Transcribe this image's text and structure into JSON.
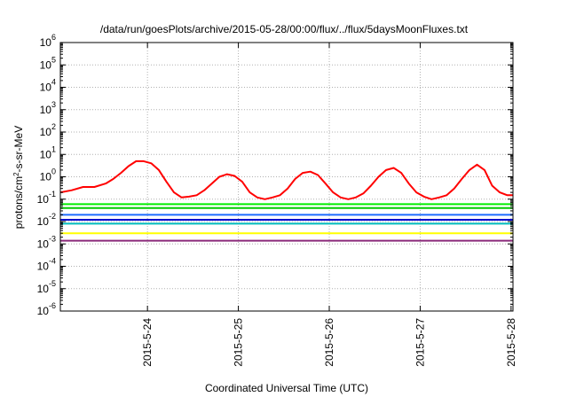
{
  "chart_data": {
    "type": "line",
    "title": "/data/run/goesPlots/archive/2015-05-28/00:00/flux/../flux/5daysMoonFluxes.txt",
    "xlabel": "Coordinated Universal Time (UTC)",
    "ylabel": {
      "pre": "protons/cm",
      "sup": "2",
      "post": "-s-sr-MeV"
    },
    "y_scale": "log",
    "ylim_exp": [
      -6,
      6
    ],
    "y_ticks": [
      {
        "base": "10",
        "exp": "-6"
      },
      {
        "base": "10",
        "exp": "-5"
      },
      {
        "base": "10",
        "exp": "-4"
      },
      {
        "base": "10",
        "exp": "-3"
      },
      {
        "base": "10",
        "exp": "-2"
      },
      {
        "base": "10",
        "exp": "-1"
      },
      {
        "base": "10",
        "exp": "0"
      },
      {
        "base": "10",
        "exp": "1"
      },
      {
        "base": "10",
        "exp": "2"
      },
      {
        "base": "10",
        "exp": "3"
      },
      {
        "base": "10",
        "exp": "4"
      },
      {
        "base": "10",
        "exp": "5"
      },
      {
        "base": "10",
        "exp": "6"
      }
    ],
    "x_start": "2015-05-23 01:00",
    "x_end": "2015-05-28 00:30",
    "x_ticks": [
      "2015-5-24",
      "2015-5-25",
      "2015-5-26",
      "2015-5-27",
      "2015-5-28"
    ],
    "grid": true,
    "series": [
      {
        "color": "#ff0000",
        "t": [
          "05-23 01:00",
          "05-23 04:00",
          "05-23 07:00",
          "05-23 10:00",
          "05-23 13:00",
          "05-23 15:00",
          "05-23 17:00",
          "05-23 19:00",
          "05-23 21:00",
          "05-23 23:00",
          "05-24 01:00",
          "05-24 03:00",
          "05-24 05:00",
          "05-24 07:00",
          "05-24 09:00",
          "05-24 11:00",
          "05-24 13:00",
          "05-24 15:00",
          "05-24 17:00",
          "05-24 19:00",
          "05-24 21:00",
          "05-24 23:00",
          "05-25 01:00",
          "05-25 03:00",
          "05-25 05:00",
          "05-25 07:00",
          "05-25 09:00",
          "05-25 11:00",
          "05-25 13:00",
          "05-25 15:00",
          "05-25 17:00",
          "05-25 19:00",
          "05-25 21:00",
          "05-25 23:00",
          "05-26 01:00",
          "05-26 03:00",
          "05-26 05:00",
          "05-26 07:00",
          "05-26 09:00",
          "05-26 11:00",
          "05-26 13:00",
          "05-26 15:00",
          "05-26 17:00",
          "05-26 19:00",
          "05-26 21:00",
          "05-26 23:00",
          "05-27 01:00",
          "05-27 03:00",
          "05-27 05:00",
          "05-27 07:00",
          "05-27 09:00",
          "05-27 11:00",
          "05-27 13:00",
          "05-27 15:00",
          "05-27 17:00",
          "05-27 19:00",
          "05-27 21:00",
          "05-27 23:00",
          "05-28 00:30"
        ],
        "y": [
          0.2,
          0.25,
          0.35,
          0.35,
          0.5,
          0.8,
          1.5,
          3,
          5,
          5,
          4,
          2,
          0.6,
          0.2,
          0.12,
          0.13,
          0.15,
          0.25,
          0.5,
          1,
          1.3,
          1.1,
          0.6,
          0.2,
          0.12,
          0.1,
          0.12,
          0.15,
          0.3,
          0.8,
          1.5,
          1.7,
          1.2,
          0.5,
          0.2,
          0.12,
          0.1,
          0.12,
          0.18,
          0.4,
          1,
          2,
          2.5,
          1.5,
          0.5,
          0.2,
          0.13,
          0.1,
          0.12,
          0.15,
          0.3,
          0.8,
          2,
          3.5,
          2,
          0.4,
          0.2,
          0.15,
          0.15
        ]
      },
      {
        "color": "#00ee00",
        "t": [
          "05-23 01:00",
          "05-28 00:30"
        ],
        "y": [
          0.06,
          0.06
        ]
      },
      {
        "color": "#00cc00",
        "t": [
          "05-23 01:00",
          "05-28 00:30"
        ],
        "y": [
          0.04,
          0.04
        ]
      },
      {
        "color": "#1e6cff",
        "t": [
          "05-23 01:00",
          "05-28 00:30"
        ],
        "y": [
          0.02,
          0.02
        ]
      },
      {
        "color": "#0000cc",
        "t": [
          "05-23 01:00",
          "05-28 00:30"
        ],
        "y": [
          0.012,
          0.012
        ]
      },
      {
        "color": "#00bbbb",
        "t": [
          "05-23 01:00",
          "05-28 00:30"
        ],
        "y": [
          0.008,
          0.008
        ]
      },
      {
        "color": "#ffff00",
        "t": [
          "05-23 01:00",
          "05-28 00:30"
        ],
        "y": [
          0.003,
          0.003
        ]
      },
      {
        "color": "#8b2a7a",
        "t": [
          "05-23 01:00",
          "05-28 00:30"
        ],
        "y": [
          0.0014,
          0.0014
        ]
      }
    ]
  }
}
